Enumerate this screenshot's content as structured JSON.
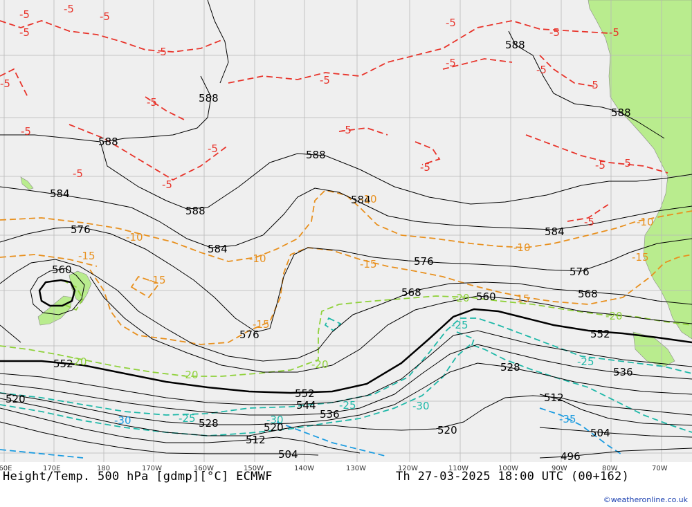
{
  "footer": {
    "title": "Height/Temp. 500 hPa [gdmp][°C] ECMWF",
    "valid_time": "Th 27-03-2025 18:00 UTC (00+162)",
    "copyright": "©weatheronline.co.uk"
  },
  "longitude_labels": [
    "160E",
    "170E",
    "180",
    "170W",
    "160W",
    "150W",
    "140W",
    "130W",
    "120W",
    "110W",
    "100W",
    "90W",
    "80W",
    "70W"
  ],
  "height_labels": [
    "588",
    "588",
    "588",
    "588",
    "588",
    "588",
    "584",
    "584",
    "584",
    "584",
    "576",
    "576",
    "576",
    "576",
    "568",
    "568",
    "560",
    "560",
    "552",
    "552",
    "552",
    "544",
    "536",
    "536",
    "528",
    "528",
    "520",
    "520",
    "520",
    "512",
    "512",
    "504",
    "504",
    "496"
  ],
  "temp_labels_red": [
    "-5",
    "-5",
    "-5",
    "-5",
    "-5",
    "-5",
    "-5",
    "-5",
    "-5",
    "-5",
    "-5",
    "-5",
    "-5",
    "-5",
    "-5",
    "-5",
    "-5",
    "-5",
    "-5",
    "-5",
    "-5",
    "-5",
    "-5"
  ],
  "temp_labels_orange": [
    "-10",
    "-10",
    "-10",
    "-10",
    "-10",
    "-15",
    "-15",
    "-15",
    "-15",
    "-15",
    "-15"
  ],
  "temp_labels_green": [
    "-20",
    "-20",
    "-20",
    "-20",
    "-20"
  ],
  "temp_labels_cyan": [
    "-25",
    "-25",
    "-25",
    "-25",
    "-30",
    "-30"
  ],
  "temp_labels_blue": [
    "-30",
    "-35"
  ],
  "colors": {
    "ocean": "#efefef",
    "land": "#b9ec8e",
    "grid": "#b8b8b8",
    "height_contour": "#000000",
    "temp_minus5": "#e8332a",
    "temp_minus10_15": "#e8901e",
    "temp_minus20": "#8fd13a",
    "temp_minus25_30": "#1fb8a8",
    "temp_minus35": "#1a9be0",
    "copyright": "#1a3fb0"
  }
}
